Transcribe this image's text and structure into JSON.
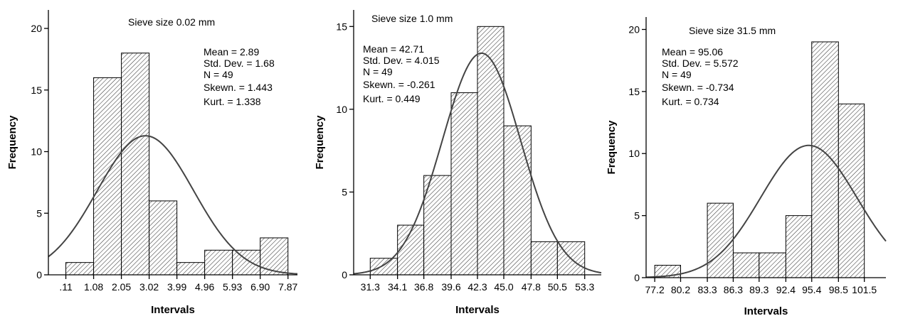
{
  "chart_data": [
    {
      "type": "bar",
      "title": "Sieve size 0.02 mm",
      "xlabel": "Intervals",
      "ylabel": "Frequency",
      "ylim": [
        0,
        21.5
      ],
      "y_ticks": [
        "0",
        "5",
        "10",
        "15",
        "20"
      ],
      "x_ticks": [
        ".11",
        "1.08",
        "2.05",
        "3.02",
        "3.99",
        "4.96",
        "5.93",
        "6.90",
        "7.87"
      ],
      "bin_edges": [
        0.11,
        1.08,
        2.05,
        3.02,
        3.99,
        4.96,
        5.93,
        6.9,
        7.87
      ],
      "x_range": [
        -0.5,
        8.2
      ],
      "values": [
        1,
        16,
        18,
        6,
        1,
        2,
        2,
        3
      ],
      "normal_curve": {
        "mean": 2.89,
        "std": 1.68,
        "n": 49
      },
      "stats": [
        "Mean = 2.89",
        "Std. Dev. = 1.68",
        "N = 49",
        "Skewn. = 1.443",
        "Kurt. = 1.338"
      ]
    },
    {
      "type": "bar",
      "title": "Sieve size 1.0 mm",
      "xlabel": "Intervals",
      "ylabel": "Frequency",
      "ylim": [
        0,
        16
      ],
      "y_ticks": [
        "0",
        "5",
        "10",
        "15"
      ],
      "x_ticks": [
        "31.3",
        "34.1",
        "36.8",
        "39.6",
        "42.3",
        "45.0",
        "47.8",
        "50.5",
        "53.3"
      ],
      "bin_edges": [
        31.3,
        34.1,
        36.8,
        39.6,
        42.3,
        45.0,
        47.8,
        50.5,
        53.3
      ],
      "x_range": [
        29.6,
        55.0
      ],
      "values": [
        1,
        3,
        6,
        11,
        15,
        9,
        2,
        2
      ],
      "normal_curve": {
        "mean": 42.71,
        "std": 4.015,
        "n": 49
      },
      "stats": [
        "Mean = 42.71",
        "Std. Dev. = 4.015",
        "N = 49",
        "Skewn. = -0.261",
        "Kurt. = 0.449"
      ]
    },
    {
      "type": "bar",
      "title": "Sieve size 31.5 mm",
      "xlabel": "Intervals",
      "ylabel": "Frequency",
      "ylim": [
        0,
        21
      ],
      "y_ticks": [
        "0",
        "5",
        "10",
        "15",
        "20"
      ],
      "x_ticks": [
        "77.2",
        "80.2",
        "83.3",
        "86.3",
        "89.3",
        "92.4",
        "95.4",
        "98.5",
        "101.5"
      ],
      "bin_edges": [
        77.2,
        80.2,
        83.3,
        86.3,
        89.3,
        92.4,
        95.4,
        98.5,
        101.5
      ],
      "x_range": [
        76.2,
        104.0
      ],
      "values": [
        1,
        0,
        6,
        2,
        2,
        5,
        19,
        14
      ],
      "normal_curve": {
        "mean": 95.06,
        "std": 5.572,
        "n": 49
      },
      "stats": [
        "Mean = 95.06",
        "Std. Dev. = 5.572",
        "N = 49",
        "Skewn. = -0.734",
        "Kurt. = 0.734"
      ]
    }
  ]
}
